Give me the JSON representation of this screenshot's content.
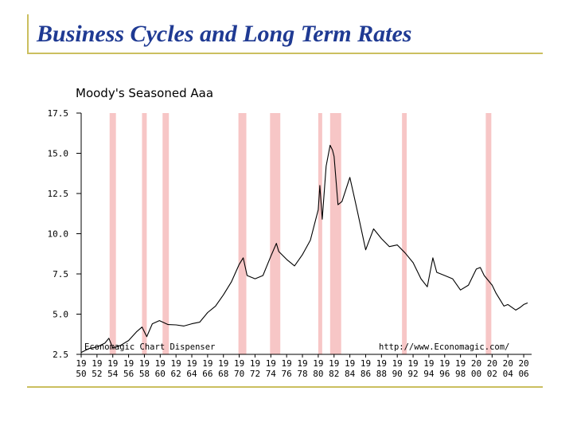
{
  "slide": {
    "title": "Business Cycles and Long Term Rates"
  },
  "colors": {
    "title": "#1f3a93",
    "rule": "#cbbf5f",
    "recession": "#f7c6c6",
    "line": "#000000"
  },
  "chart_data": {
    "type": "line",
    "title": "Moody's Seasoned Aaa",
    "xlabel": "",
    "ylabel": "",
    "xlim": [
      1950,
      2007
    ],
    "ylim": [
      2.5,
      17.5
    ],
    "y_ticks": [
      "2.5",
      "5.0",
      "7.5",
      "10.0",
      "12.5",
      "15.0",
      "17.5"
    ],
    "x_ticks": [
      {
        "top": "19",
        "bottom": "50"
      },
      {
        "top": "19",
        "bottom": "52"
      },
      {
        "top": "19",
        "bottom": "54"
      },
      {
        "top": "19",
        "bottom": "56"
      },
      {
        "top": "19",
        "bottom": "58"
      },
      {
        "top": "19",
        "bottom": "60"
      },
      {
        "top": "19",
        "bottom": "62"
      },
      {
        "top": "19",
        "bottom": "64"
      },
      {
        "top": "19",
        "bottom": "66"
      },
      {
        "top": "19",
        "bottom": "68"
      },
      {
        "top": "19",
        "bottom": "70"
      },
      {
        "top": "19",
        "bottom": "72"
      },
      {
        "top": "19",
        "bottom": "74"
      },
      {
        "top": "19",
        "bottom": "76"
      },
      {
        "top": "19",
        "bottom": "78"
      },
      {
        "top": "19",
        "bottom": "80"
      },
      {
        "top": "19",
        "bottom": "82"
      },
      {
        "top": "19",
        "bottom": "84"
      },
      {
        "top": "19",
        "bottom": "86"
      },
      {
        "top": "19",
        "bottom": "88"
      },
      {
        "top": "19",
        "bottom": "90"
      },
      {
        "top": "19",
        "bottom": "92"
      },
      {
        "top": "19",
        "bottom": "94"
      },
      {
        "top": "19",
        "bottom": "96"
      },
      {
        "top": "19",
        "bottom": "98"
      },
      {
        "top": "20",
        "bottom": "00"
      },
      {
        "top": "20",
        "bottom": "02"
      },
      {
        "top": "20",
        "bottom": "04"
      },
      {
        "top": "20",
        "bottom": "06"
      }
    ],
    "recessions": [
      [
        1953.6,
        1954.4
      ],
      [
        1957.7,
        1958.3
      ],
      [
        1960.3,
        1961.1
      ],
      [
        1969.9,
        1970.9
      ],
      [
        1973.9,
        1975.2
      ],
      [
        1980.0,
        1980.5
      ],
      [
        1981.5,
        1982.9
      ],
      [
        1990.6,
        1991.2
      ],
      [
        2001.2,
        2001.9
      ]
    ],
    "series": [
      {
        "x": [
          1950,
          1951,
          1952,
          1953,
          1953.5,
          1954,
          1955,
          1956,
          1957,
          1957.7,
          1958.3,
          1959,
          1959.9,
          1961,
          1962,
          1963,
          1964,
          1965,
          1966,
          1967,
          1968,
          1969,
          1970,
          1970.5,
          1971,
          1972,
          1973,
          1974,
          1974.7,
          1975,
          1976,
          1977,
          1978,
          1979,
          1980,
          1980.2,
          1980.5,
          1981,
          1981.5,
          1981.8,
          1982,
          1982.5,
          1983,
          1984,
          1984.5,
          1985,
          1986,
          1987,
          1988,
          1989,
          1990,
          1991,
          1992,
          1993,
          1993.8,
          1994.5,
          1995,
          1996,
          1997,
          1998,
          1999,
          2000,
          2000.5,
          2001,
          2002,
          2002.5,
          2003,
          2003.5,
          2004,
          2005,
          2005.5,
          2006,
          2006.5
        ],
        "y": [
          2.62,
          2.86,
          2.96,
          3.2,
          3.5,
          2.9,
          3.06,
          3.36,
          3.9,
          4.2,
          3.6,
          4.4,
          4.6,
          4.35,
          4.33,
          4.26,
          4.4,
          4.5,
          5.1,
          5.5,
          6.2,
          7.0,
          8.1,
          8.5,
          7.4,
          7.2,
          7.4,
          8.6,
          9.4,
          8.9,
          8.4,
          8.0,
          8.7,
          9.6,
          11.5,
          13.0,
          10.9,
          14.2,
          15.5,
          15.2,
          14.8,
          11.8,
          12.0,
          13.5,
          12.4,
          11.3,
          9.0,
          10.3,
          9.7,
          9.2,
          9.3,
          8.8,
          8.2,
          7.2,
          6.7,
          8.5,
          7.6,
          7.4,
          7.2,
          6.5,
          6.8,
          7.8,
          7.9,
          7.4,
          6.8,
          6.3,
          5.9,
          5.5,
          5.6,
          5.25,
          5.4,
          5.6,
          5.7
        ]
      }
    ],
    "watermark_left": "Economagic Chart Dispenser",
    "watermark_right": "http://www.Economagic.com/"
  }
}
